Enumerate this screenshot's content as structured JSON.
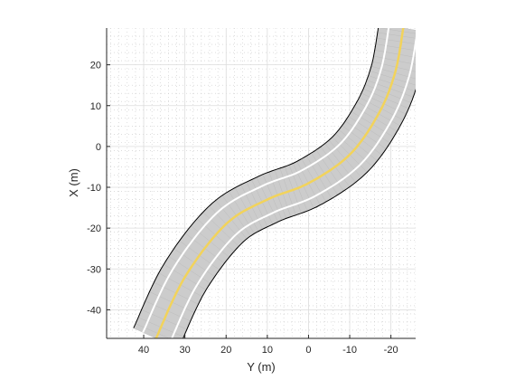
{
  "chart_data": {
    "type": "road-plot",
    "xlabel": "Y (m)",
    "ylabel": "X (m)",
    "xlim": [
      -26,
      49
    ],
    "ylim": [
      -47,
      29
    ],
    "x_reversed": true,
    "x_ticks": [
      40,
      30,
      20,
      10,
      0,
      -10,
      -20
    ],
    "x_tick_labels": [
      "40",
      "30",
      "20",
      "10",
      "0",
      "-10",
      "-20"
    ],
    "y_ticks": [
      20,
      10,
      0,
      -10,
      -20,
      -30,
      -40
    ],
    "y_tick_labels": [
      "20",
      "10",
      "0",
      "-10",
      "-20",
      "-30",
      "-40"
    ],
    "grid": true,
    "minor_grid": true,
    "road": {
      "width_m": 12,
      "lane_marking_offset_m": 3.5,
      "centerline": [
        {
          "y": 37,
          "x": -47
        },
        {
          "y": 30,
          "x": -32
        },
        {
          "y": 20,
          "x": -19
        },
        {
          "y": 10,
          "x": -13
        },
        {
          "y": 0,
          "x": -9
        },
        {
          "y": -10,
          "x": -2
        },
        {
          "y": -17,
          "x": 8
        },
        {
          "y": -21,
          "x": 18
        },
        {
          "y": -23,
          "x": 29
        }
      ]
    },
    "colors": {
      "road": "#cccccc",
      "road_edge": "#000000",
      "lane_marking": "#ffffff",
      "center_marking": "#f2d35b",
      "grid": "#dcdcdc",
      "axis": "#262626"
    }
  }
}
